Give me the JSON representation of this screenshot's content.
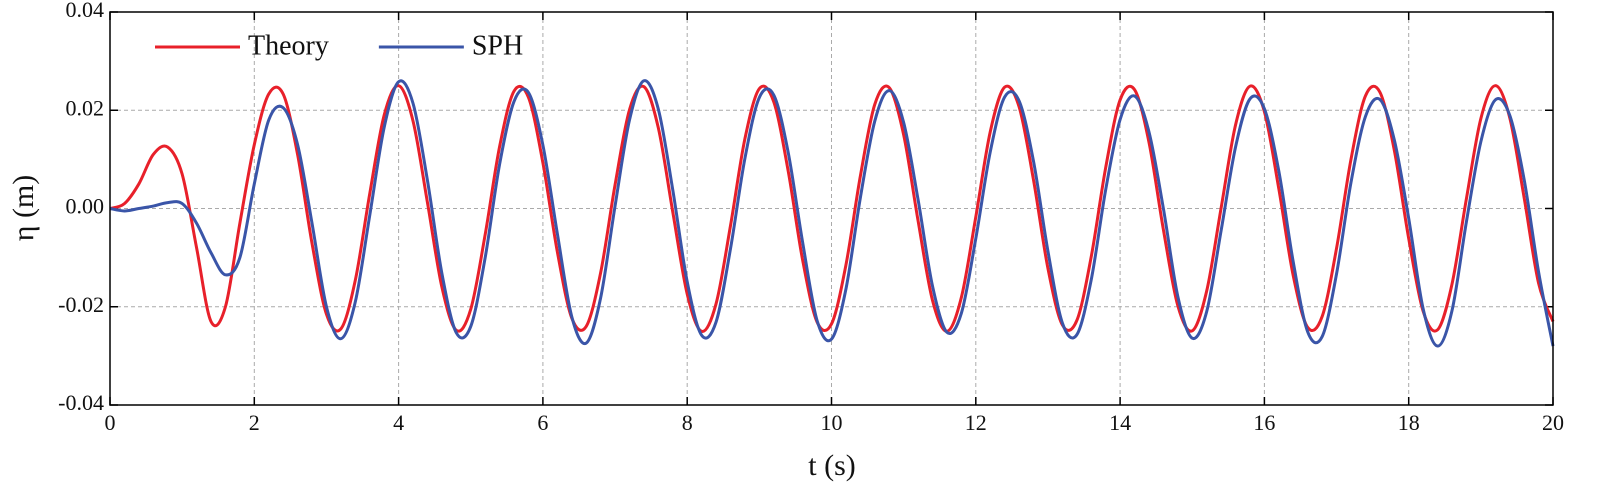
{
  "chart_data": {
    "type": "line",
    "x_label": "t (s)",
    "y_label": "η (m)",
    "xlim": [
      0,
      20
    ],
    "ylim": [
      -0.04,
      0.04
    ],
    "xticks": [
      0,
      2,
      4,
      6,
      8,
      10,
      12,
      14,
      16,
      18,
      20
    ],
    "yticks": [
      -0.04,
      -0.02,
      {
        "value": 0,
        "label": "0.00"
      },
      0.02,
      0.04
    ],
    "grid": true,
    "legend": "top-left",
    "x": [
      0,
      0.2,
      0.4,
      0.6,
      0.8,
      1,
      1.2,
      1.4,
      1.6,
      1.8,
      2,
      2.2,
      2.4,
      2.6,
      2.8,
      3,
      3.2,
      3.4,
      3.6,
      3.8,
      4,
      4.2,
      4.4,
      4.6,
      4.8,
      5,
      5.2,
      5.4,
      5.6,
      5.8,
      6,
      6.2,
      6.4,
      6.6,
      6.8,
      7,
      7.2,
      7.4,
      7.6,
      7.8,
      8,
      8.2,
      8.4,
      8.6,
      8.8,
      9,
      9.2,
      9.4,
      9.6,
      9.8,
      10,
      10.2,
      10.4,
      10.6,
      10.8,
      11,
      11.2,
      11.4,
      11.6,
      11.8,
      12,
      12.2,
      12.4,
      12.6,
      12.8,
      13,
      13.2,
      13.4,
      13.6,
      13.8,
      14,
      14.2,
      14.4,
      14.6,
      14.8,
      15,
      15.2,
      15.4,
      15.6,
      15.8,
      16,
      16.2,
      16.4,
      16.6,
      16.8,
      17,
      17.2,
      17.4,
      17.6,
      17.8,
      18,
      18.2,
      18.4,
      18.6,
      18.8,
      19,
      19.2,
      19.4,
      19.6,
      19.8,
      20
    ],
    "series": [
      {
        "name": "Theory",
        "color": "#e8202a",
        "values": [
          0,
          0.001,
          0.005,
          0.011,
          0.0125,
          0.007,
          -0.008,
          -0.023,
          -0.02,
          -0.003,
          0.013,
          0.0233,
          0.0233,
          0.011,
          -0.0071,
          -0.0215,
          -0.0245,
          -0.0146,
          0.003,
          0.019,
          0.025,
          0.0178,
          0.0012,
          -0.016,
          -0.0248,
          -0.0205,
          -0.0053,
          0.0126,
          0.0239,
          0.0226,
          0.0093,
          -0.0088,
          -0.0223,
          -0.024,
          -0.0131,
          0.0048,
          0.0201,
          0.0248,
          0.0164,
          -0.0007,
          -0.0174,
          -0.025,
          -0.0194,
          -0.0035,
          0.0142,
          0.0244,
          0.0217,
          0.0076,
          -0.0105,
          -0.0231,
          -0.0235,
          -0.0115,
          0.0066,
          0.0212,
          0.0246,
          0.015,
          -0.0025,
          -0.0187,
          -0.025,
          -0.0181,
          -0.0017,
          0.0156,
          0.0247,
          0.0207,
          0.0058,
          -0.0122,
          -0.0237,
          -0.0228,
          -0.0098,
          0.0083,
          0.0221,
          0.0242,
          0.0135,
          -0.0043,
          -0.0198,
          -0.0249,
          -0.0168,
          0.0001,
          0.017,
          0.0249,
          0.0197,
          0.004,
          -0.0137,
          -0.0242,
          -0.022,
          -0.0081,
          0.01,
          0.0229,
          0.0237,
          0.0119,
          -0.0061,
          -0.0209,
          -0.0247,
          -0.0154,
          0.002,
          0.0183,
          0.025,
          0.0185,
          0.0022,
          -0.0152,
          -0.023
        ]
      },
      {
        "name": "SPH",
        "color": "#3a55a8",
        "values": [
          0,
          -0.0005,
          0,
          0.0005,
          0.0012,
          0.001,
          -0.003,
          -0.009,
          -0.0135,
          -0.01,
          0.005,
          0.018,
          0.0205,
          0.013,
          -0.003,
          -0.02,
          -0.0265,
          -0.019,
          -0.0014,
          0.0165,
          0.0258,
          0.0214,
          0.0057,
          -0.0132,
          -0.0253,
          -0.024,
          -0.01,
          0.009,
          0.0218,
          0.0236,
          0.0129,
          -0.0051,
          -0.022,
          -0.0274,
          -0.0182,
          0.0005,
          0.018,
          0.026,
          0.0202,
          0.0038,
          -0.0149,
          -0.0258,
          -0.0231,
          -0.0082,
          0.0102,
          0.0226,
          0.0231,
          0.0114,
          -0.0069,
          -0.0228,
          -0.0266,
          -0.0164,
          0.0022,
          0.0178,
          0.024,
          0.0175,
          0.0018,
          -0.0158,
          -0.0252,
          -0.0213,
          -0.0061,
          0.0115,
          0.0227,
          0.0219,
          0.0096,
          -0.0087,
          -0.0233,
          -0.0257,
          -0.0145,
          0.0038,
          0.0181,
          0.0229,
          0.0156,
          0,
          -0.0179,
          -0.0264,
          -0.021,
          -0.0045,
          0.0125,
          0.0223,
          0.0203,
          0.0076,
          -0.0109,
          -0.0251,
          -0.0261,
          -0.0133,
          0.0053,
          0.0187,
          0.0222,
          0.014,
          -0.002,
          -0.0204,
          -0.028,
          -0.0208,
          -0.0027,
          0.0136,
          0.0221,
          0.019,
          0.0059,
          -0.0129,
          -0.028
        ]
      }
    ]
  }
}
